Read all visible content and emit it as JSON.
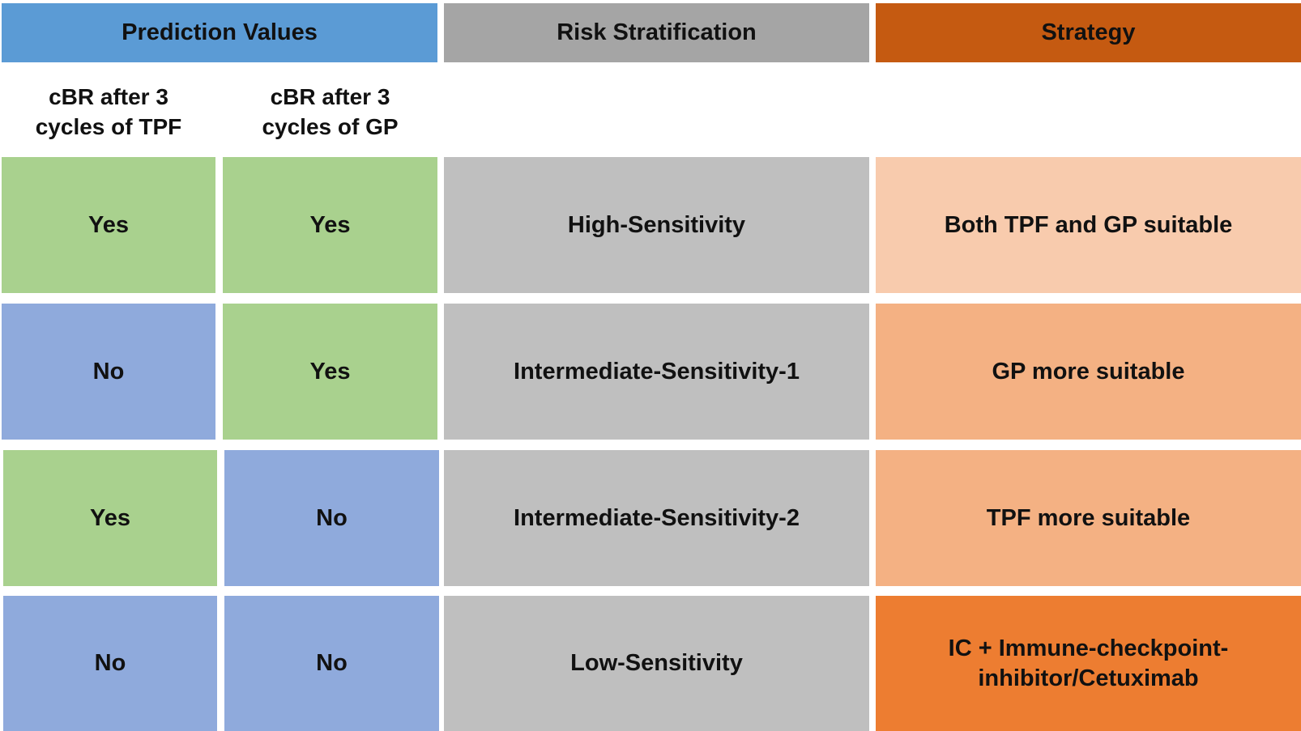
{
  "headers": {
    "prediction": "Prediction Values",
    "risk": "Risk Stratification",
    "strategy": "Strategy"
  },
  "subheaders": {
    "tpf": "cBR after 3 cycles of TPF",
    "gp": "cBR after 3 cycles of GP"
  },
  "rows": [
    {
      "tpf": "Yes",
      "gp": "Yes",
      "risk": "High-Sensitivity",
      "strategy": "Both TPF and GP suitable"
    },
    {
      "tpf": "No",
      "gp": "Yes",
      "risk": "Intermediate-Sensitivity-1",
      "strategy": "GP more suitable"
    },
    {
      "tpf": "Yes",
      "gp": "No",
      "risk": "Intermediate-Sensitivity-2",
      "strategy": "TPF more suitable"
    },
    {
      "tpf": "No",
      "gp": "No",
      "risk": "Low-Sensitivity",
      "strategy": "IC + Immune-checkpoint-inhibitor/Cetuximab"
    }
  ],
  "colors": {
    "prediction_header": "#5b9bd5",
    "risk_header": "#a5a5a5",
    "strategy_header": "#c55a11",
    "yes": "#a9d18e",
    "no": "#8faadc",
    "risk_cell": "#bfbfbf",
    "strategy_light": "#f8cbad",
    "strategy_mid": "#f4b183",
    "strategy_dark": "#ed7d31"
  }
}
